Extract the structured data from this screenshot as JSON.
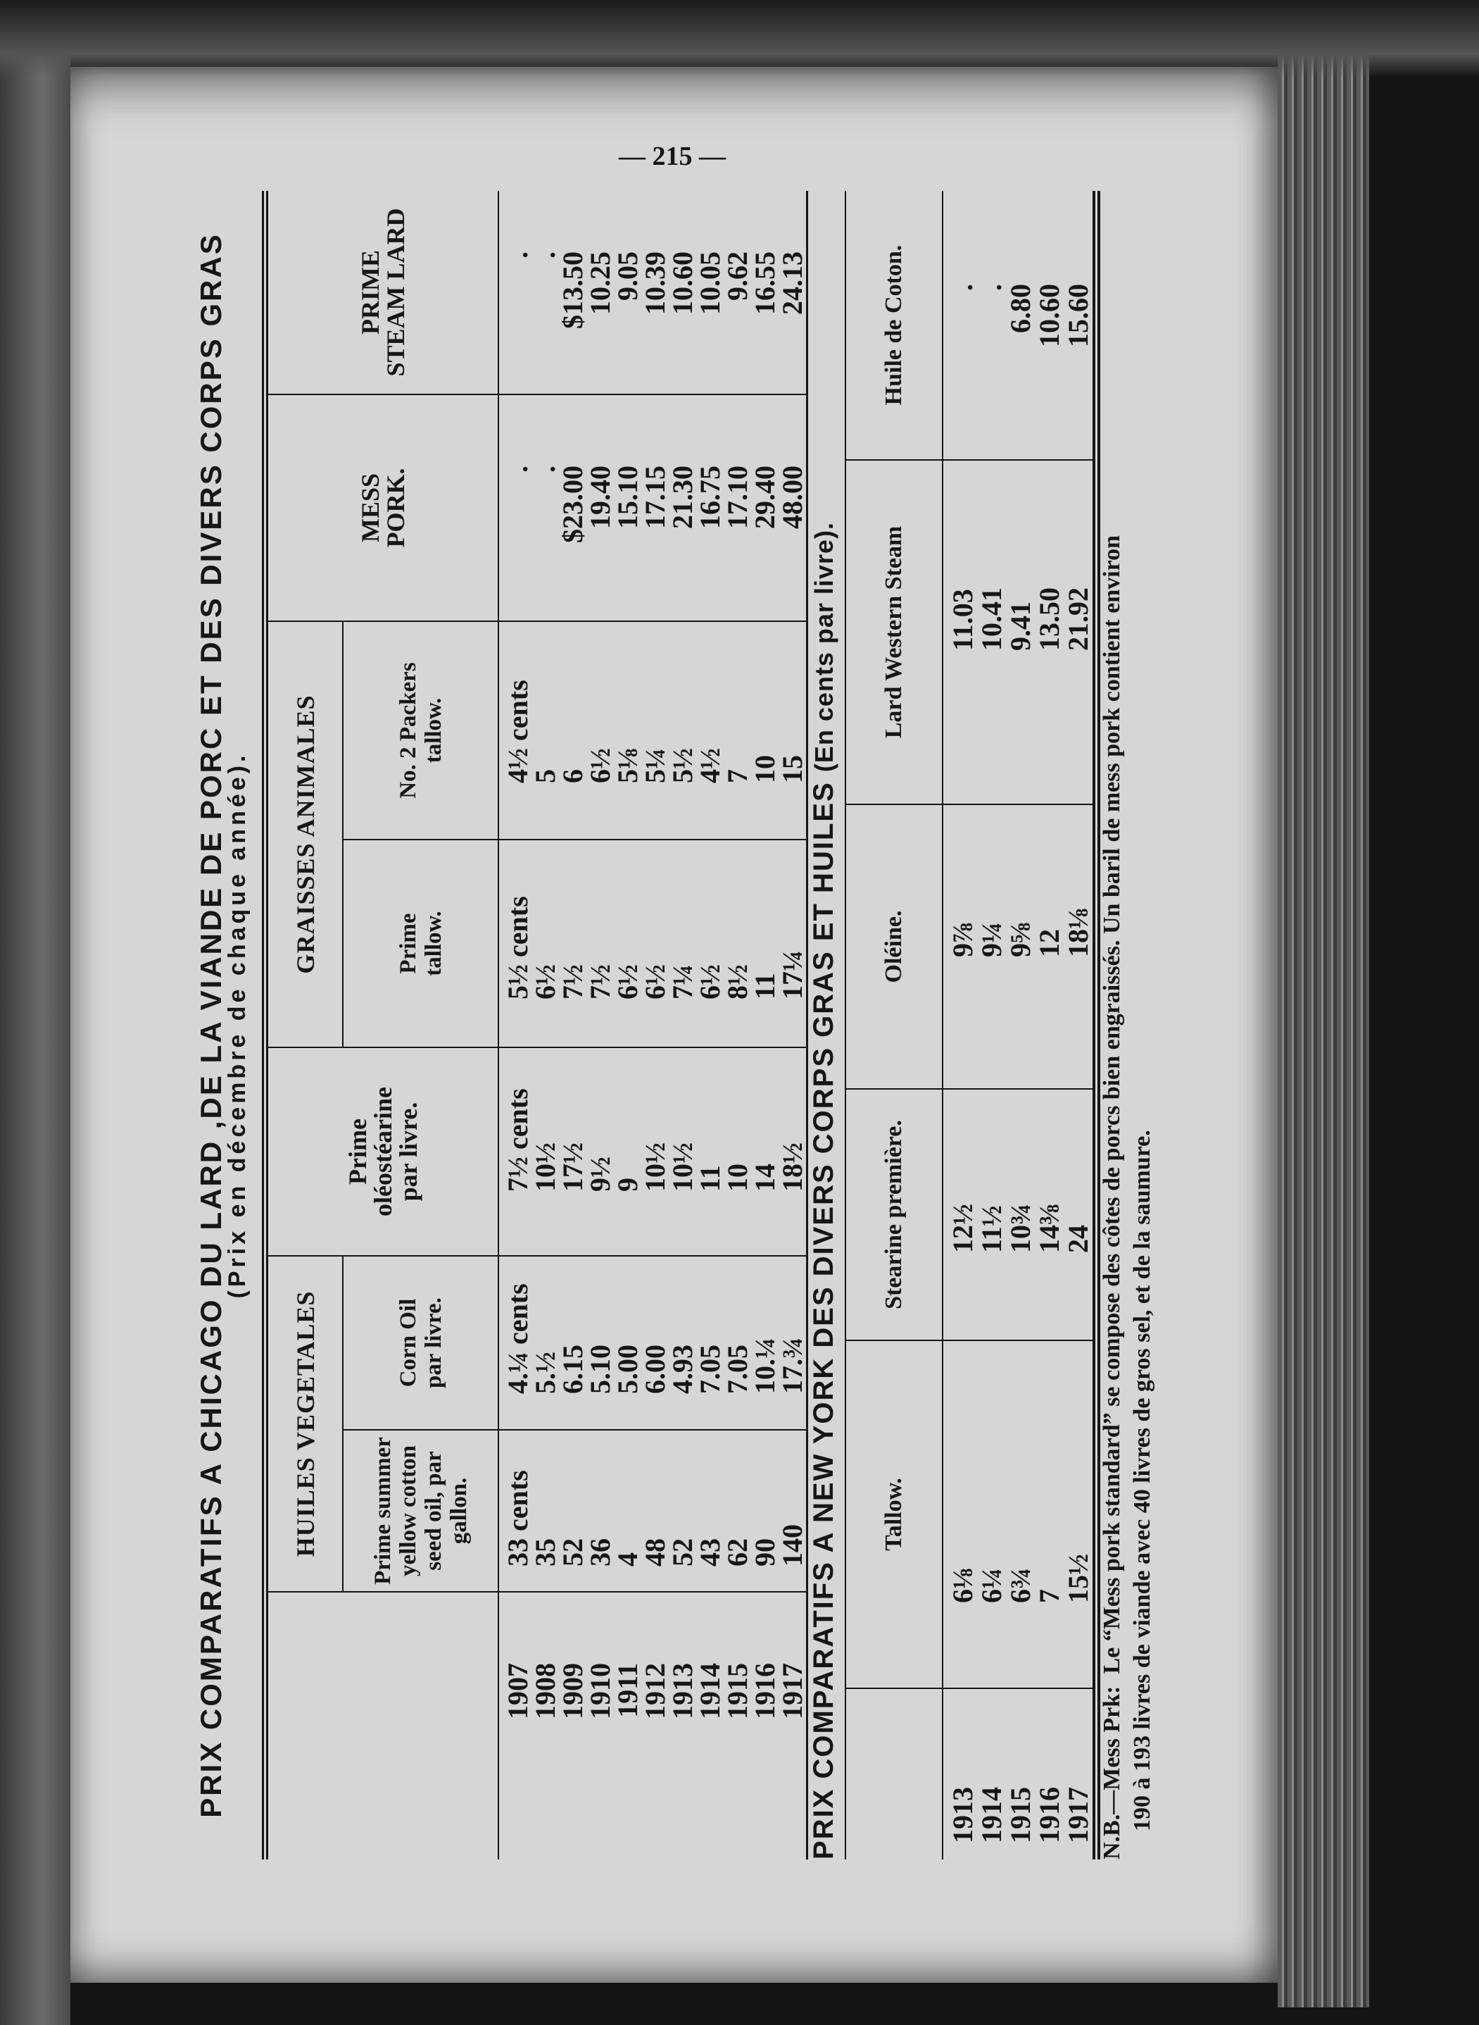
{
  "page_number": "— 215 —",
  "chicago": {
    "title": "PRIX COMPARATIFS A CHICAGO DU LARD ,DE LA VIANDE DE PORC ET DES DIVERS CORPS GRAS",
    "subtitle": "(Prix en décembre de chaque année).",
    "groups": {
      "vegetable_oils": "HUILES VEGETALES",
      "animal_fats": "GRAISSES ANIMALES"
    },
    "headers": {
      "cotton": "Prime summer\nyellow cotton\nseed oil, par\ngallon.",
      "corn": "Corn Oil\npar livre.",
      "oleo": "Prime\noléostéarine\npar livre.",
      "prime_tallow": "Prime\ntallow.",
      "packers_tallow": "No. 2 Packers\ntallow.",
      "mess_pork": "MESS\nPORK.",
      "steam_lard": "PRIME\nSTEAM LARD"
    },
    "rows": [
      [
        "1907",
        "33 cents",
        "4.¼ cents",
        "7½ cents",
        "5½ cents",
        "4½ cents",
        ".",
        "."
      ],
      [
        "1908",
        "35",
        "5.½",
        "10½",
        "6½",
        "5",
        ".",
        "."
      ],
      [
        "1909",
        "52",
        "6.15",
        "17½",
        "7½",
        "6",
        "$23.00",
        "$13.50"
      ],
      [
        "1910",
        "36",
        "5.10",
        "9½",
        "7½",
        "6½",
        "19.40",
        "10.25"
      ],
      [
        "1911",
        "4",
        "5.00",
        "9",
        "6½",
        "5⅛",
        "15.10",
        "9.05"
      ],
      [
        "1912",
        "48",
        "6.00",
        "10½",
        "6½",
        "5¼",
        "17.15",
        "10.39"
      ],
      [
        "1913",
        "52",
        "4.93",
        "10½",
        "7¼",
        "5½",
        "21.30",
        "10.60"
      ],
      [
        "1914",
        "43",
        "7.05",
        "11",
        "6½",
        "4½",
        "16.75",
        "10.05"
      ],
      [
        "1915",
        "62",
        "7.05",
        "10",
        "8½",
        "7",
        "17.10",
        "9.62"
      ],
      [
        "1916",
        "90",
        "10.¼",
        "14",
        "11",
        "10",
        "29.40",
        "16.55"
      ],
      [
        "1917",
        "140",
        "17.¾",
        "18½",
        "17¼",
        "15",
        "48.00",
        "24.13"
      ]
    ]
  },
  "new_york": {
    "title": "PRIX COMPARATIFS A NEW YORK DES DIVERS CORPS GRAS ET HUILES",
    "subtitle": "(En cents par livre).",
    "headers": {
      "tallow": "Tallow.",
      "stearine": "Stearine première.",
      "oleine": "Oléine.",
      "lard_western": "Lard Western Steam",
      "cotton_oil": "Huile de Coton."
    },
    "rows": [
      [
        "1913",
        "6⅛",
        "12½",
        "9⅞",
        "11.03",
        "."
      ],
      [
        "1914",
        "6¼",
        "11½",
        "9¼",
        "10.41",
        "."
      ],
      [
        "1915",
        "6¾",
        "10¾",
        "9⅝",
        "9.41",
        "6.80"
      ],
      [
        "1916",
        "7",
        "14⅜",
        "12",
        "13.50",
        "10.60"
      ],
      [
        "1917",
        "15½",
        "24",
        "18⅛",
        "21.92",
        "15.60"
      ]
    ]
  },
  "footnote": {
    "label": "N.B.—Mess Prk:",
    "line1": "Le “Mess pork standard” se compose des côtes de porcs bien engraissés.  Un baril de mess pork contient environ",
    "line2": "190 à 193 livres de viande avec 40 livres de gros sel, et de la saumure."
  }
}
